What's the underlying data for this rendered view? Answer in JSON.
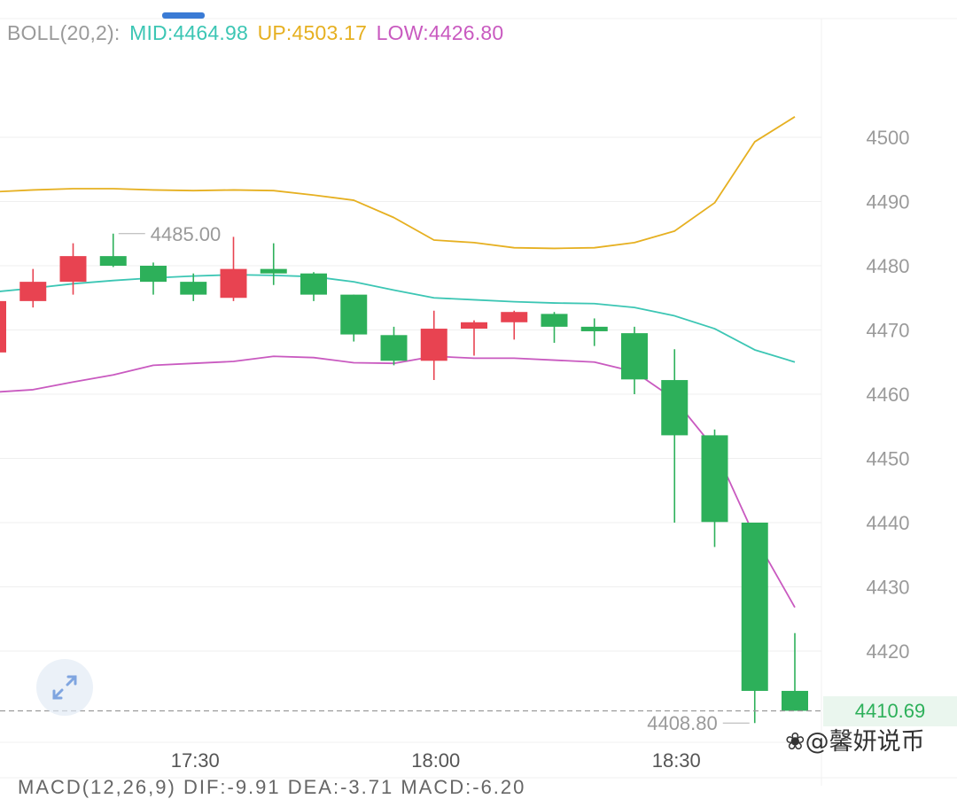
{
  "indicator": {
    "name": "BOLL(20,2):",
    "mid": "MID:4464.98",
    "up": "UP:4503.17",
    "low": "LOW:4426.80"
  },
  "price_tag": "4410.69",
  "watermark": "❀@馨妍说币",
  "colors": {
    "up_candle": "#e84351",
    "down_candle": "#2db05a",
    "mid_line": "#3cc6b4",
    "upper_band": "#e6b021",
    "lower_band": "#c95ac0",
    "axis_text": "#9a9a9a",
    "grid": "#efefef"
  },
  "chart_data": {
    "type": "candlestick",
    "y_ticks": [
      4500,
      4490,
      4480,
      4470,
      4460,
      4450,
      4440,
      4430,
      4420
    ],
    "x_ticks": [
      "17:30",
      "18:00",
      "18:30"
    ],
    "y_range": [
      4405.5,
      4517
    ],
    "candles": [
      {
        "open": 4466.5,
        "high": 4474.5,
        "low": 4466.5,
        "close": 4474.5
      },
      {
        "open": 4474.5,
        "high": 4479.5,
        "low": 4473.5,
        "close": 4477.5
      },
      {
        "open": 4477.5,
        "high": 4483.5,
        "low": 4475.5,
        "close": 4481.5
      },
      {
        "open": 4481.5,
        "high": 4485.0,
        "low": 4479.8,
        "close": 4480.0
      },
      {
        "open": 4480.0,
        "high": 4480.5,
        "low": 4475.5,
        "close": 4477.5
      },
      {
        "open": 4477.5,
        "high": 4478.8,
        "low": 4474.5,
        "close": 4475.5
      },
      {
        "open": 4475.0,
        "high": 4484.5,
        "low": 4474.5,
        "close": 4479.5
      },
      {
        "open": 4479.5,
        "high": 4483.5,
        "low": 4477.0,
        "close": 4478.8
      },
      {
        "open": 4478.8,
        "high": 4479.0,
        "low": 4474.5,
        "close": 4475.5
      },
      {
        "open": 4475.5,
        "high": 4475.5,
        "low": 4468.2,
        "close": 4469.3
      },
      {
        "open": 4469.2,
        "high": 4470.5,
        "low": 4464.5,
        "close": 4465.2
      },
      {
        "open": 4465.2,
        "high": 4473.0,
        "low": 4462.2,
        "close": 4470.2
      },
      {
        "open": 4470.2,
        "high": 4471.5,
        "low": 4466.0,
        "close": 4471.2
      },
      {
        "open": 4471.2,
        "high": 4473.0,
        "low": 4468.5,
        "close": 4472.8
      },
      {
        "open": 4472.5,
        "high": 4472.8,
        "low": 4468.0,
        "close": 4470.5
      },
      {
        "open": 4470.5,
        "high": 4471.8,
        "low": 4467.5,
        "close": 4469.8
      },
      {
        "open": 4469.5,
        "high": 4470.5,
        "low": 4460.0,
        "close": 4462.3
      },
      {
        "open": 4462.2,
        "high": 4467.0,
        "low": 4440.0,
        "close": 4453.6
      },
      {
        "open": 4453.6,
        "high": 4454.5,
        "low": 4436.2,
        "close": 4440.1
      },
      {
        "open": 4440.0,
        "high": 4440.0,
        "low": 4408.8,
        "close": 4413.8
      },
      {
        "open": 4413.8,
        "high": 4422.8,
        "low": 4410.7,
        "close": 4410.7
      }
    ],
    "bands": {
      "upper": [
        4491.5,
        4491.8,
        4492.0,
        4492.0,
        4491.8,
        4491.7,
        4491.8,
        4491.7,
        4491.0,
        4490.2,
        4487.5,
        4484.0,
        4483.6,
        4482.8,
        4482.7,
        4482.8,
        4483.6,
        4485.4,
        4489.8,
        4499.3,
        4503.2
      ],
      "mid": [
        4475.9,
        4476.5,
        4477.2,
        4477.7,
        4478.1,
        4478.4,
        4478.6,
        4478.5,
        4478.3,
        4477.5,
        4476.2,
        4475.0,
        4474.7,
        4474.4,
        4474.2,
        4474.1,
        4473.5,
        4472.2,
        4470.2,
        4466.9,
        4465.0
      ],
      "lower": [
        4460.3,
        4460.7,
        4461.9,
        4463.0,
        4464.5,
        4464.8,
        4465.1,
        4465.9,
        4465.7,
        4464.9,
        4464.8,
        4465.9,
        4465.6,
        4465.6,
        4465.3,
        4465.0,
        4463.5,
        4459.2,
        4451.5,
        4437.8,
        4426.8
      ]
    },
    "annotations": {
      "high_label": "4485.00",
      "low_label": "4408.80",
      "last_price": 4410.69
    }
  },
  "footer_cut": "MACD(12,26,9) DIF:-9.91 DEA:-3.71 MACD:-6.20"
}
